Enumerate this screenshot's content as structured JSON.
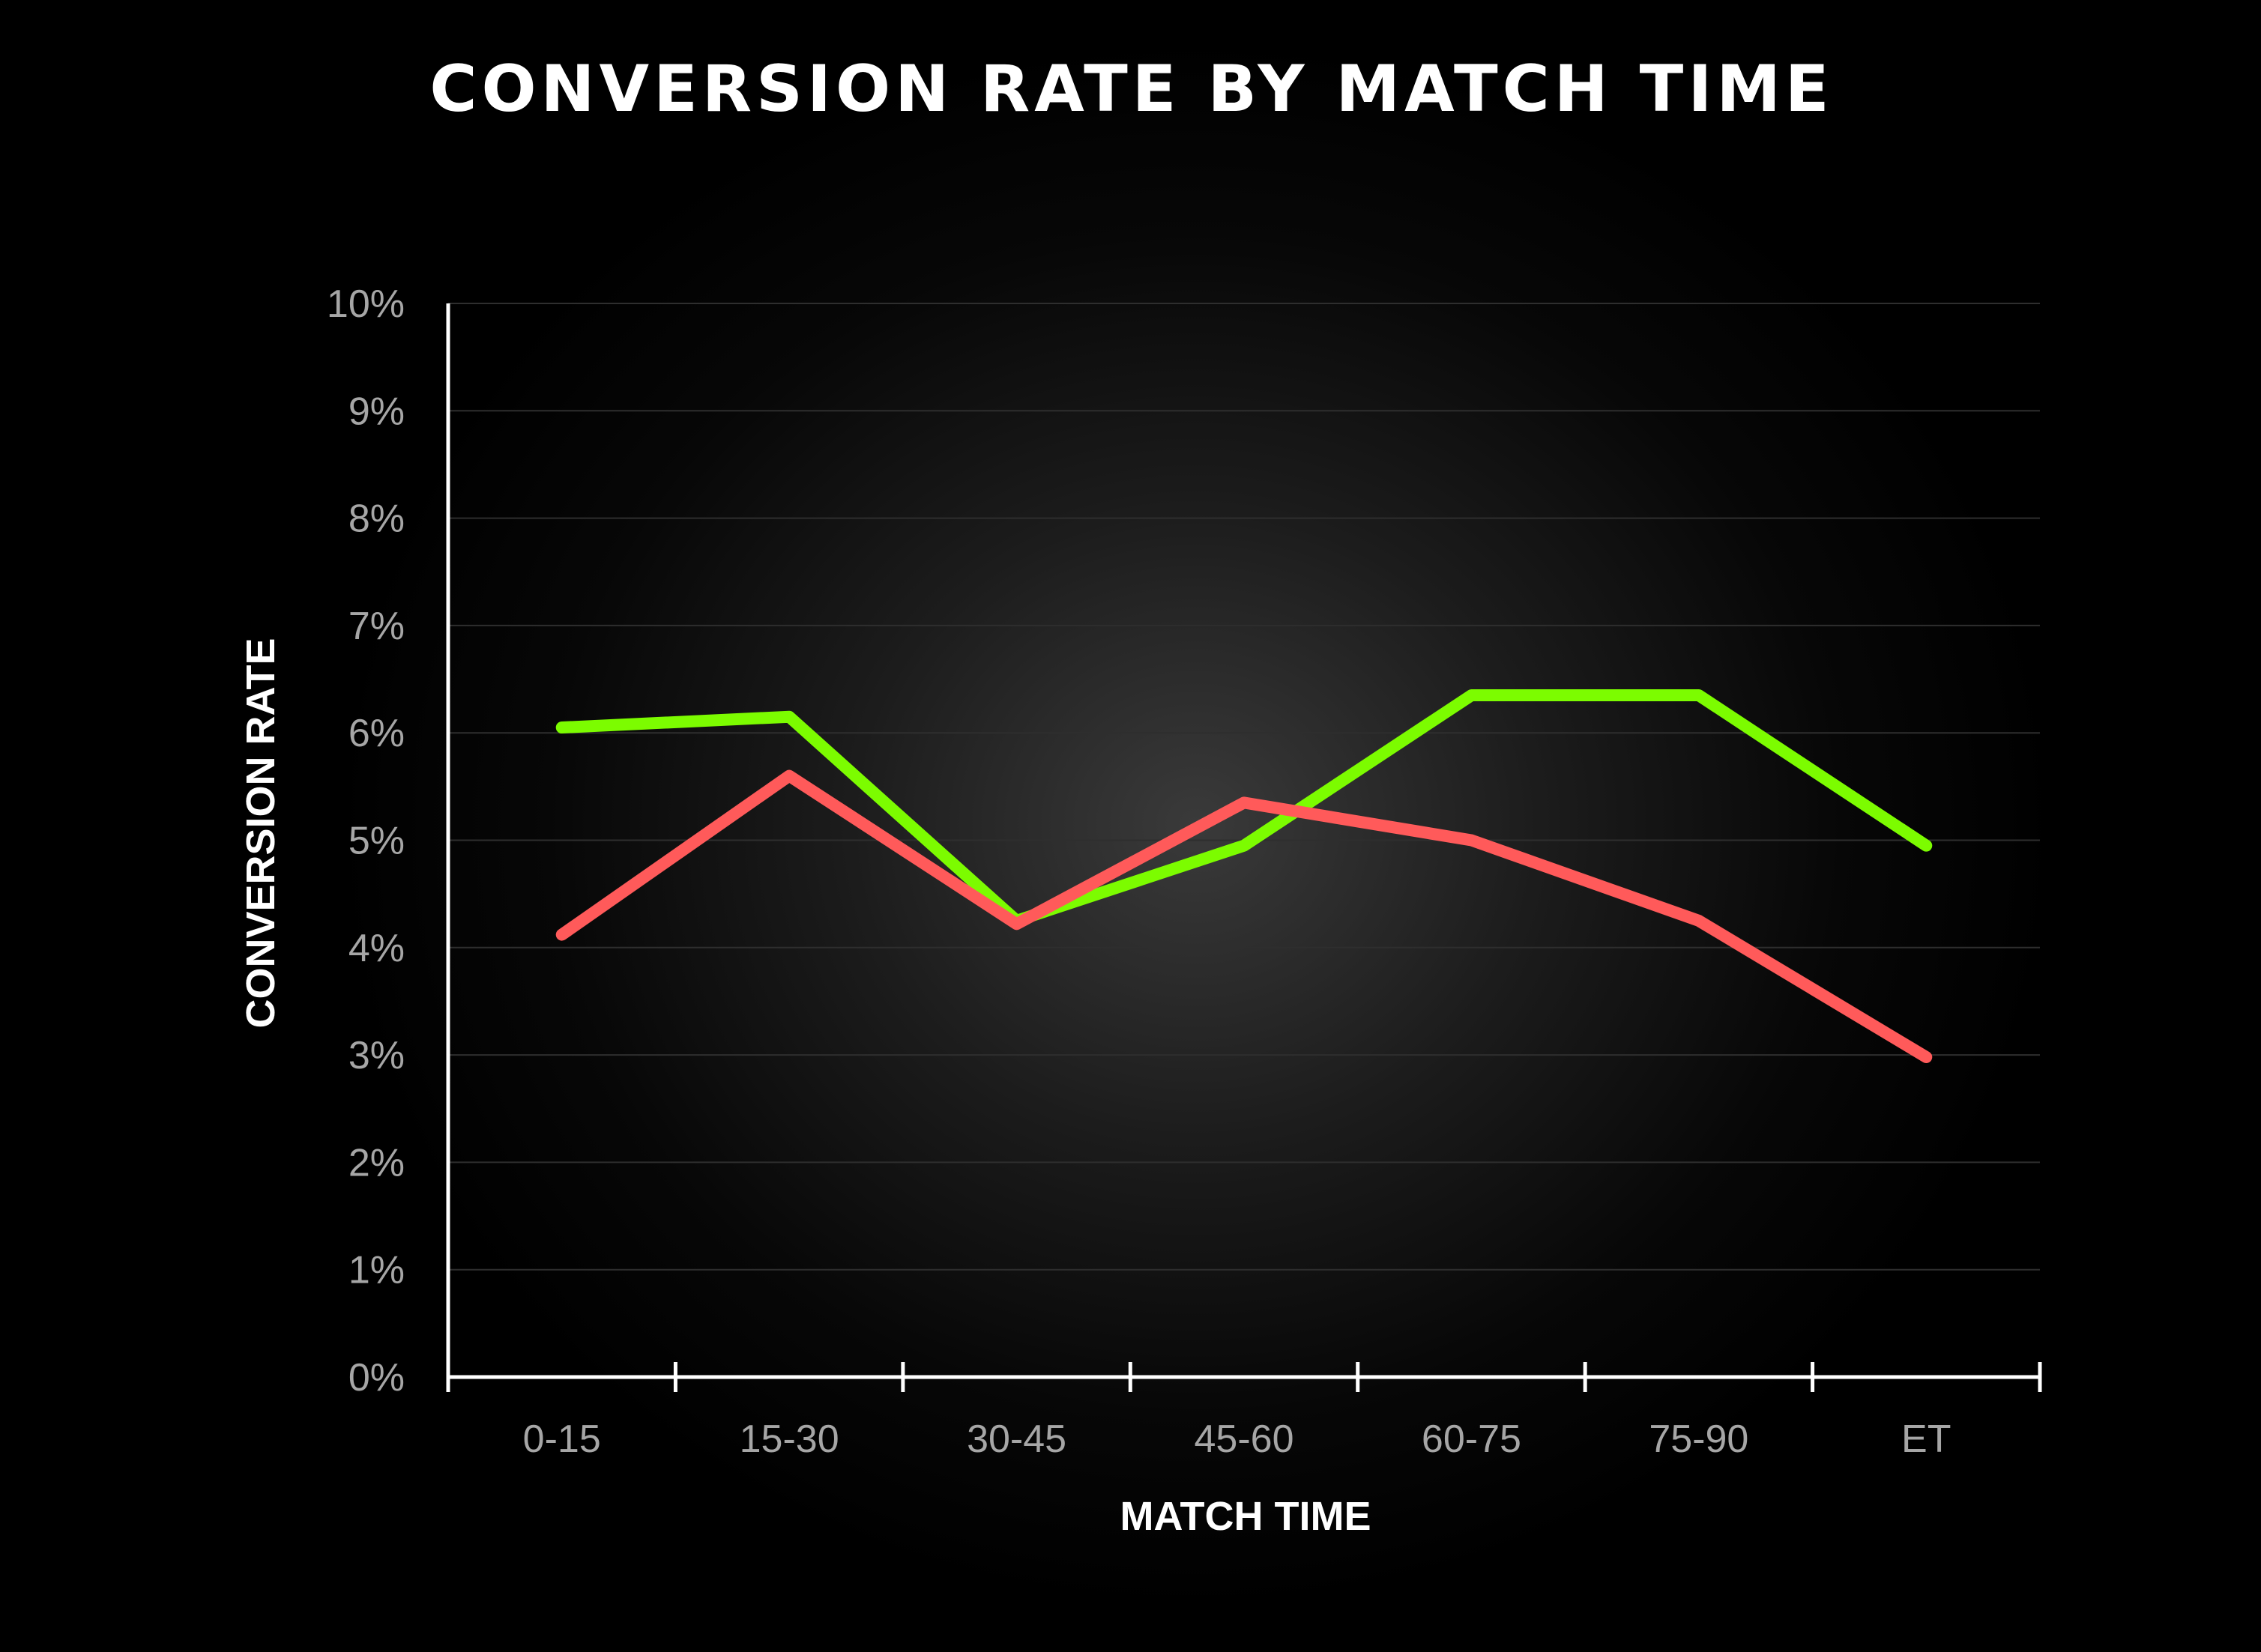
{
  "chart_data": {
    "type": "line",
    "title": "CONVERSION RATE BY MATCH TIME",
    "xlabel": "MATCH TIME",
    "ylabel": "CONVERSION RATE",
    "categories": [
      "0-15",
      "15-30",
      "30-45",
      "45-60",
      "60-75",
      "75-90",
      "ET"
    ],
    "y_ticks": [
      "0%",
      "1%",
      "2%",
      "3%",
      "4%",
      "5%",
      "6%",
      "7%",
      "8%",
      "9%",
      "10%"
    ],
    "ylim": [
      0,
      10
    ],
    "grid": true,
    "legend": "none",
    "series": [
      {
        "color": "#7cfc00",
        "values": [
          6.05,
          6.15,
          4.25,
          4.95,
          6.35,
          6.35,
          4.95
        ]
      },
      {
        "color": "#ff5a5a",
        "values": [
          4.12,
          5.6,
          4.22,
          5.35,
          5.0,
          4.25,
          2.98
        ]
      }
    ]
  }
}
